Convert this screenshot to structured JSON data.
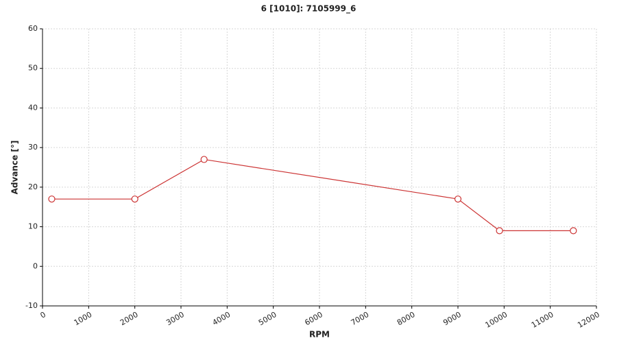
{
  "chart_data": {
    "type": "line",
    "title": "6 [1010]: 7105999_6",
    "x_label": "RPM",
    "y_label": "Advance [°]",
    "x": [
      200,
      2000,
      3500,
      9000,
      9900,
      11500
    ],
    "values": [
      17,
      17,
      27,
      17,
      9,
      9
    ],
    "color": "#cc3333",
    "xlim": [
      0,
      12000
    ],
    "xticks": [
      0,
      1000,
      2000,
      3000,
      4000,
      5000,
      6000,
      7000,
      8000,
      9000,
      10000,
      11000,
      12000
    ],
    "ylim": [
      -10,
      60
    ],
    "yticks": [
      -10,
      0,
      10,
      20,
      30,
      40,
      50,
      60
    ],
    "grid": true,
    "markers": true
  }
}
